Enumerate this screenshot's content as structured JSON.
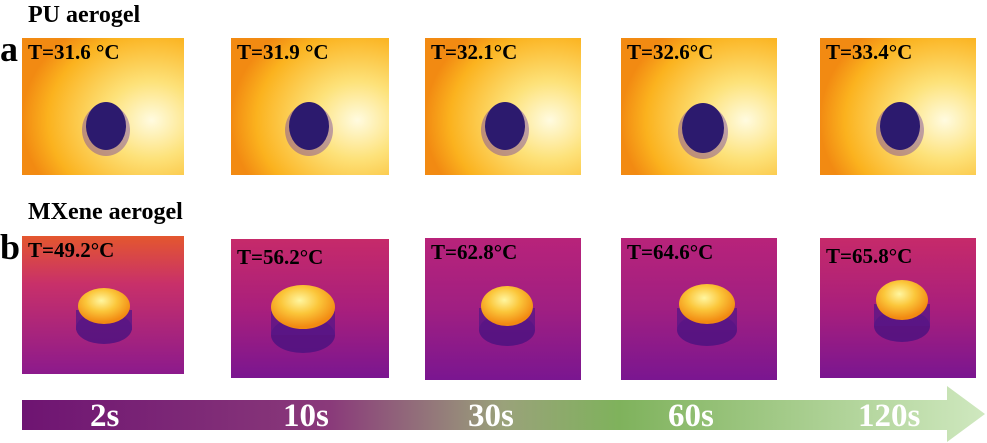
{
  "rows": {
    "a": {
      "letter": "a",
      "title": "PU aerogel"
    },
    "b": {
      "letter": "b",
      "title": "MXene aerogel"
    }
  },
  "pu_temps": [
    "T=31.6 °C",
    "T=31.9 °C",
    "T=32.1°C",
    "T=32.6°C",
    "T=33.4°C"
  ],
  "mxene_temps": [
    "T=49.2°C",
    "T=56.2°C",
    "T=62.8°C",
    "T=64.6°C",
    "T=65.8°C"
  ],
  "times": [
    "2s",
    "10s",
    "30s",
    "60s",
    "120s"
  ],
  "colors": {
    "pu_hot": "#fff6c8",
    "pu_warm": "#fbb21e",
    "pu_edge": "#f28a12",
    "pu_sample": "#2c1a6e",
    "mx_bg": "#b8237a",
    "mx_dark": "#6e1792",
    "mx_sample_top": "#fff6a0",
    "mx_sample_mid": "#f7a81e",
    "arrow_start": "#6e1472",
    "arrow_mid": "#7fae5e",
    "arrow_end": "#c9e6b8"
  }
}
